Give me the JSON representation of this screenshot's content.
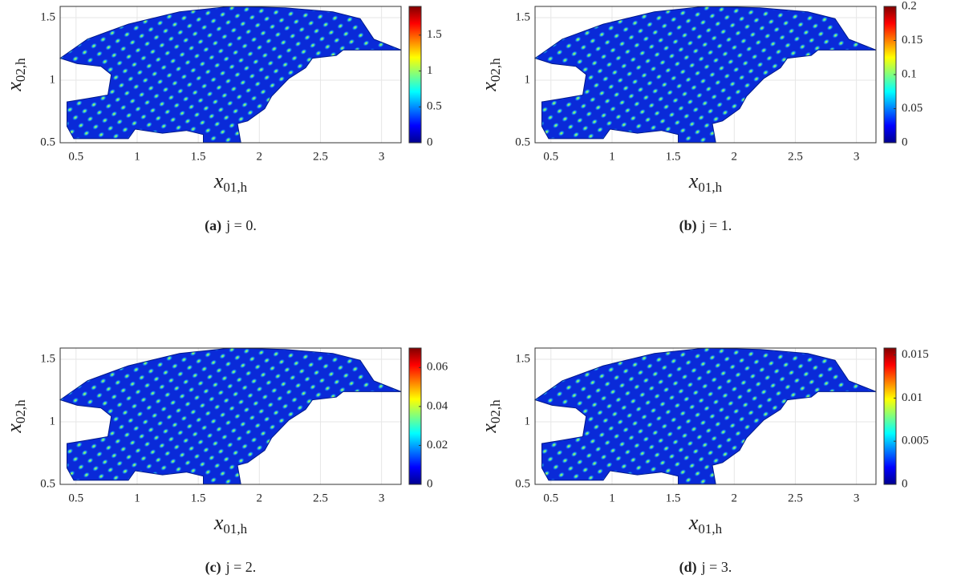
{
  "chart_data": [
    {
      "type": "field",
      "xlabel": {
        "symbol": "x",
        "subscript": "01,h"
      },
      "ylabel": {
        "symbol": "x",
        "subscript": "02,h"
      },
      "xlim": [
        0.37,
        3.16
      ],
      "xticks": [
        0.5,
        1,
        1.5,
        2,
        2.5,
        3
      ],
      "ylim": [
        0.5,
        1.59
      ],
      "yticks": [
        0.5,
        1,
        1.5
      ],
      "clim": [
        0,
        1.9
      ],
      "cticks": [
        0,
        0.5,
        1,
        1.5
      ],
      "colormap": "jet",
      "grid": true,
      "caption_label": "(a)",
      "caption_text": "j = 0."
    },
    {
      "type": "field",
      "xlabel": {
        "symbol": "x",
        "subscript": "01,h"
      },
      "ylabel": {
        "symbol": "x",
        "subscript": "02,h"
      },
      "xlim": [
        0.37,
        3.16
      ],
      "xticks": [
        0.5,
        1,
        1.5,
        2,
        2.5,
        3
      ],
      "ylim": [
        0.5,
        1.59
      ],
      "yticks": [
        0.5,
        1,
        1.5
      ],
      "clim": [
        0,
        0.2
      ],
      "cticks": [
        0,
        0.05,
        0.1,
        0.15,
        0.2
      ],
      "colormap": "jet",
      "grid": true,
      "caption_label": "(b)",
      "caption_text": "j = 1."
    },
    {
      "type": "field",
      "xlabel": {
        "symbol": "x",
        "subscript": "01,h"
      },
      "ylabel": {
        "symbol": "x",
        "subscript": "02,h"
      },
      "xlim": [
        0.37,
        3.16
      ],
      "xticks": [
        0.5,
        1,
        1.5,
        2,
        2.5,
        3
      ],
      "ylim": [
        0.5,
        1.59
      ],
      "yticks": [
        0.5,
        1,
        1.5
      ],
      "clim": [
        0,
        0.07
      ],
      "cticks": [
        0,
        0.02,
        0.04,
        0.06
      ],
      "colormap": "jet",
      "grid": true,
      "caption_label": "(c)",
      "caption_text": "j = 2."
    },
    {
      "type": "field",
      "xlabel": {
        "symbol": "x",
        "subscript": "01,h"
      },
      "ylabel": {
        "symbol": "x",
        "subscript": "02,h"
      },
      "xlim": [
        0.37,
        3.16
      ],
      "xticks": [
        0.5,
        1,
        1.5,
        2,
        2.5,
        3
      ],
      "ylim": [
        0.5,
        1.59
      ],
      "yticks": [
        0.5,
        1,
        1.5
      ],
      "clim": [
        0,
        0.0158
      ],
      "cticks": [
        0,
        0.005,
        0.01,
        0.015
      ],
      "colormap": "jet",
      "grid": true,
      "caption_label": "(d)",
      "caption_text": "j = 3."
    }
  ]
}
